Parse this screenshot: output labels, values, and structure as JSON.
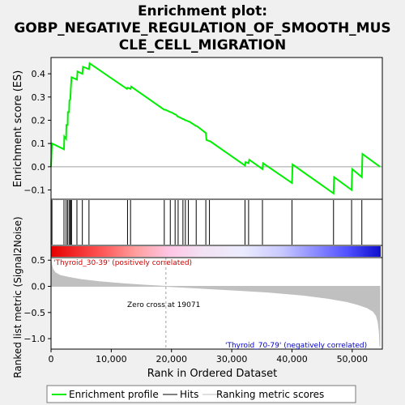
{
  "title_lines": [
    "Enrichment plot:",
    "GOBP_NEGATIVE_REGULATION_OF_SMOOTH_MUS",
    "CLE_CELL_MIGRATION"
  ],
  "colors": {
    "enrichment": "#00ee00",
    "hits": "#000000",
    "metric": "#c0c0c0",
    "positive_label": "#cc0000",
    "negative_label": "#0000cc",
    "zero_line": "#a0a0a0",
    "panel_bg": "#ffffff",
    "figure_bg": "#f0f0f0"
  },
  "labels": {
    "es_ylabel": "Enrichment score (ES)",
    "metric_ylabel": "Ranked list metric (Signal2Noise)",
    "xlabel": "Rank in Ordered Dataset",
    "positive": "'Thyroid_30-39' (positively correlated)",
    "negative": "'Thyroid_70-79' (negatively correlated)",
    "zero_cross": "Zero cross at 19071"
  },
  "legend": [
    {
      "label": "Enrichment profile",
      "icon": "green-line-icon"
    },
    {
      "label": "Hits",
      "icon": "black-line-icon"
    },
    {
      "label": "Ranking metric scores",
      "icon": "gray-line-icon"
    }
  ],
  "chart_data": [
    {
      "type": "line",
      "name": "enrichment-profile",
      "ylabel": "Enrichment score (ES)",
      "xlim": [
        0,
        55000
      ],
      "ylim": [
        -0.14,
        0.47
      ],
      "yticks": [
        -0.1,
        0.0,
        0.1,
        0.2,
        0.3,
        0.4
      ],
      "ytick_labels": [
        "−0.1",
        "0.0",
        "0.1",
        "0.2",
        "0.3",
        "0.4"
      ],
      "grid": false,
      "x": [
        0,
        150,
        2150,
        2200,
        2500,
        2550,
        2750,
        2800,
        3000,
        3050,
        3200,
        3300,
        3400,
        4300,
        4400,
        5200,
        5300,
        6300,
        6400,
        12600,
        12700,
        13200,
        13300,
        18800,
        19000,
        19800,
        19900,
        20600,
        20700,
        21100,
        21200,
        21900,
        22000,
        22300,
        22400,
        22800,
        22900,
        24100,
        24200,
        25700,
        25800,
        26300,
        26400,
        32200,
        32300,
        32800,
        32900,
        35100,
        35200,
        40000,
        40100,
        46900,
        47000,
        49900,
        50000,
        51600,
        51700,
        54600
      ],
      "y": [
        0,
        0.1,
        0.075,
        0.13,
        0.12,
        0.18,
        0.18,
        0.235,
        0.235,
        0.285,
        0.29,
        0.34,
        0.385,
        0.375,
        0.41,
        0.4,
        0.43,
        0.42,
        0.445,
        0.335,
        0.34,
        0.335,
        0.345,
        0.245,
        0.245,
        0.235,
        0.235,
        0.225,
        0.225,
        0.215,
        0.215,
        0.205,
        0.205,
        0.2,
        0.2,
        0.195,
        0.195,
        0.175,
        0.175,
        0.145,
        0.115,
        0.11,
        0.11,
        0.005,
        0.02,
        0.015,
        0.03,
        -0.01,
        0.015,
        -0.07,
        0.01,
        -0.115,
        -0.045,
        -0.1,
        -0.01,
        -0.045,
        0.055,
        0.0
      ]
    },
    {
      "type": "scatter",
      "name": "hits",
      "x": [
        150,
        2150,
        2500,
        2750,
        3000,
        3200,
        3300,
        3400,
        4300,
        5200,
        6300,
        12700,
        13200,
        18800,
        19800,
        20600,
        21100,
        21900,
        22300,
        22800,
        24100,
        25700,
        26300,
        32200,
        32800,
        35100,
        40000,
        46900,
        49900,
        51600
      ]
    },
    {
      "type": "area",
      "name": "ranked-list-metric",
      "ylabel": "Ranked list metric (Signal2Noise)",
      "xlabel": "Rank in Ordered Dataset",
      "xlim": [
        0,
        55000
      ],
      "ylim": [
        -1.2,
        0.55
      ],
      "yticks": [
        -1.0,
        -0.5,
        0.0,
        0.5
      ],
      "ytick_labels": [
        "−1.0",
        "−0.5",
        "0.0",
        "0.5"
      ],
      "xticks": [
        0,
        10000,
        20000,
        30000,
        40000,
        50000
      ],
      "xtick_labels": [
        "0",
        "10,000",
        "20,000",
        "30,000",
        "40,000",
        "50,000"
      ],
      "zero_cross": 19071,
      "x": [
        0,
        100,
        300,
        700,
        1500,
        3000,
        5000,
        8000,
        12000,
        16000,
        19071,
        24000,
        30000,
        36000,
        42000,
        46000,
        49000,
        51000,
        52500,
        53500,
        54000,
        54300,
        54500,
        54600
      ],
      "y": [
        0.52,
        0.42,
        0.33,
        0.26,
        0.21,
        0.17,
        0.13,
        0.09,
        0.05,
        0.02,
        0.0,
        -0.03,
        -0.07,
        -0.11,
        -0.17,
        -0.23,
        -0.29,
        -0.35,
        -0.41,
        -0.48,
        -0.56,
        -0.68,
        -0.88,
        -1.15
      ]
    }
  ]
}
